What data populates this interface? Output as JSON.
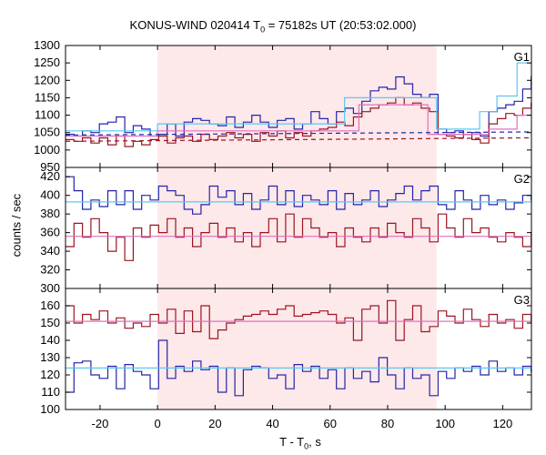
{
  "chart_data": {
    "type": "line",
    "title": "KONUS-WIND 020414 T",
    "title_sub": "0",
    "title_rest": " = 75182s UT (20:53:02.000)",
    "xlabel": "T - T",
    "xlabel_sub": "0",
    "xlabel_rest": ", s",
    "ylabel": "counts / sec",
    "xlim": [
      -32,
      130
    ],
    "x_ticks": [
      "-20",
      "0",
      "20",
      "40",
      "60",
      "80",
      "100",
      "120"
    ],
    "x_tick_values": [
      -20,
      0,
      20,
      40,
      60,
      80,
      100,
      120
    ],
    "shaded_interval": [
      0,
      97
    ],
    "shade_color": "#fde8ea",
    "bin_width": 2.944,
    "bin_start": -32,
    "colors": {
      "blue": "#2424a8",
      "red": "#9c1420",
      "lightblue": "#5bc8f0",
      "pink": "#e070c0",
      "dash_blue": "#2424a8",
      "dash_red": "#9c1420"
    },
    "panels": [
      {
        "label": "G1",
        "ylim": [
          950,
          1300
        ],
        "y_ticks": [
          "950",
          "1000",
          "1050",
          "1100",
          "1150",
          "1200",
          "1250",
          "1300"
        ],
        "y_tick_values": [
          950,
          1000,
          1050,
          1100,
          1150,
          1200,
          1250,
          1300
        ],
        "series": [
          {
            "color": "blue",
            "values": [
              1045,
              1040,
              1055,
              1050,
              1075,
              1080,
              1095,
              1050,
              1070,
              1060,
              1040,
              1045,
              1075,
              1040,
              1080,
              1090,
              1085,
              1075,
              1070,
              1095,
              1065,
              1080,
              1100,
              1080,
              1065,
              1085,
              1090,
              1060,
              1075,
              1110,
              1090,
              1075,
              1110,
              1120,
              1105,
              1140,
              1170,
              1180,
              1175,
              1210,
              1190,
              1160,
              1150,
              1160,
              1060,
              1050,
              1055,
              1045,
              1050,
              1040,
              1110,
              1120,
              1130,
              1140,
              1175,
              1210,
              1255,
              1265
            ]
          },
          {
            "color": "red",
            "values": [
              1030,
              1025,
              1035,
              1020,
              1035,
              1015,
              1040,
              1010,
              1025,
              1015,
              1030,
              1040,
              1020,
              1035,
              1040,
              1025,
              1045,
              1030,
              1040,
              1050,
              1035,
              1045,
              1025,
              1050,
              1040,
              1055,
              1035,
              1050,
              1040,
              1055,
              1060,
              1065,
              1080,
              1070,
              1095,
              1110,
              1120,
              1130,
              1135,
              1150,
              1130,
              1135,
              1120,
              1110,
              1045,
              1040,
              1035,
              1045,
              1030,
              1020,
              1075,
              1090,
              1105,
              1100,
              1120,
              1135,
              1170,
              1240
            ]
          },
          {
            "color": "lightblue",
            "steps": [
              [
                -32,
                1055
              ],
              [
                0,
                1075
              ],
              [
                65,
                1150
              ],
              [
                97,
                1060
              ],
              [
                112,
                1110
              ],
              [
                118,
                1155
              ],
              [
                125,
                1250
              ],
              [
                130,
                1250
              ]
            ]
          },
          {
            "color": "pink",
            "steps": [
              [
                -32,
                1040
              ],
              [
                0,
                1055
              ],
              [
                70,
                1130
              ],
              [
                94,
                1045
              ],
              [
                115,
                1060
              ],
              [
                125,
                1100
              ],
              [
                130,
                1100
              ]
            ]
          },
          {
            "color": "dash_blue",
            "dashed": true,
            "line": [
              [
                -32,
                1043
              ],
              [
                130,
                1052
              ]
            ]
          },
          {
            "color": "dash_red",
            "dashed": true,
            "line": [
              [
                -32,
                1025
              ],
              [
                130,
                1035
              ]
            ]
          }
        ]
      },
      {
        "label": "G2",
        "ylim": [
          300,
          430
        ],
        "y_ticks": [
          "300",
          "320",
          "340",
          "360",
          "380",
          "400",
          "420"
        ],
        "y_tick_values": [
          300,
          320,
          340,
          360,
          380,
          400,
          420
        ],
        "series": [
          {
            "color": "blue",
            "values": [
              420,
              405,
              385,
              395,
              388,
              405,
              390,
              405,
              385,
              400,
              395,
              410,
              405,
              400,
              385,
              380,
              390,
              410,
              398,
              405,
              390,
              402,
              385,
              395,
              410,
              390,
              405,
              388,
              400,
              395,
              390,
              405,
              385,
              402,
              390,
              395,
              405,
              388,
              395,
              402,
              410,
              395,
              405,
              410,
              390,
              385,
              405,
              395,
              385,
              400,
              390,
              395,
              385,
              392,
              400,
              395,
              390,
              410
            ]
          },
          {
            "color": "red",
            "values": [
              345,
              370,
              355,
              375,
              360,
              340,
              355,
              330,
              365,
              355,
              368,
              360,
              375,
              355,
              365,
              345,
              360,
              370,
              355,
              365,
              350,
              360,
              345,
              360,
              375,
              350,
              380,
              355,
              375,
              365,
              355,
              360,
              345,
              365,
              355,
              350,
              365,
              355,
              370,
              360,
              355,
              375,
              365,
              350,
              380,
              365,
              355,
              375,
              360,
              365,
              355,
              350,
              360,
              355,
              345,
              360,
              370,
              380
            ]
          },
          {
            "color": "lightblue",
            "line": [
              [
                -32,
                393
              ],
              [
                130,
                393
              ]
            ]
          },
          {
            "color": "pink",
            "line": [
              [
                -32,
                356
              ],
              [
                130,
                356
              ]
            ]
          }
        ]
      },
      {
        "label": "G3",
        "ylim": [
          100,
          170
        ],
        "y_ticks": [
          "100",
          "110",
          "120",
          "130",
          "140",
          "150",
          "160"
        ],
        "y_tick_values": [
          100,
          110,
          120,
          130,
          140,
          150,
          160
        ],
        "series": [
          {
            "color": "blue",
            "values": [
              110,
              127,
              128,
              120,
              118,
              125,
              112,
              126,
              122,
              120,
              112,
              140,
              118,
              125,
              122,
              128,
              123,
              125,
              110,
              124,
              108,
              123,
              125,
              124,
              118,
              120,
              112,
              126,
              122,
              125,
              118,
              123,
              112,
              124,
              118,
              122,
              116,
              130,
              120,
              112,
              124,
              118,
              120,
              108,
              122,
              118,
              124,
              122,
              125,
              120,
              128,
              122,
              124,
              120,
              125,
              122,
              124,
              118
            ]
          },
          {
            "color": "red",
            "values": [
              160,
              150,
              155,
              152,
              157,
              150,
              153,
              147,
              150,
              148,
              155,
              150,
              158,
              144,
              157,
              145,
              160,
              141,
              146,
              150,
              152,
              154,
              155,
              157,
              155,
              158,
              160,
              154,
              155,
              156,
              157,
              155,
              150,
              153,
              140,
              158,
              160,
              150,
              163,
              140,
              152,
              160,
              145,
              148,
              157,
              154,
              150,
              158,
              152,
              148,
              155,
              150,
              152,
              147,
              155,
              150,
              152,
              158
            ]
          },
          {
            "color": "lightblue",
            "line": [
              [
                -32,
                124
              ],
              [
                130,
                124
              ]
            ]
          },
          {
            "color": "pink",
            "line": [
              [
                -32,
                151
              ],
              [
                130,
                151
              ]
            ]
          }
        ]
      }
    ]
  }
}
